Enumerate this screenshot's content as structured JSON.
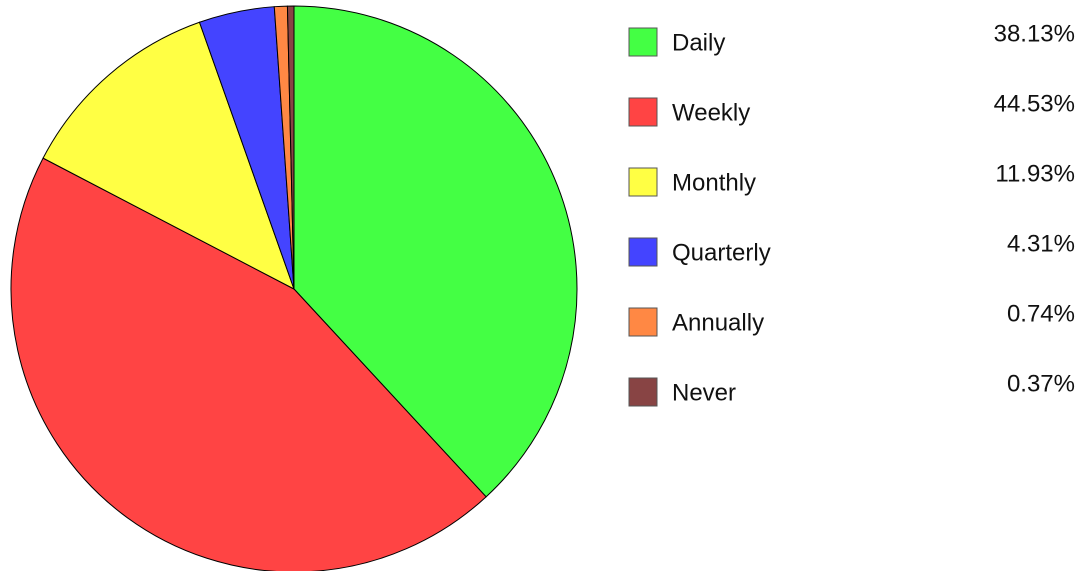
{
  "chart_data": {
    "type": "pie",
    "categories": [
      "Daily",
      "Weekly",
      "Monthly",
      "Quarterly",
      "Annually",
      "Never"
    ],
    "values": [
      38.13,
      44.53,
      11.93,
      4.31,
      0.74,
      0.37
    ],
    "value_labels": [
      "38.13%",
      "44.53%",
      "11.93%",
      "4.31%",
      "0.74%",
      "0.37%"
    ],
    "colors": [
      "#44ff44",
      "#ff4444",
      "#ffff44",
      "#4444ff",
      "#ff8844",
      "#884444"
    ],
    "legend": "right"
  }
}
